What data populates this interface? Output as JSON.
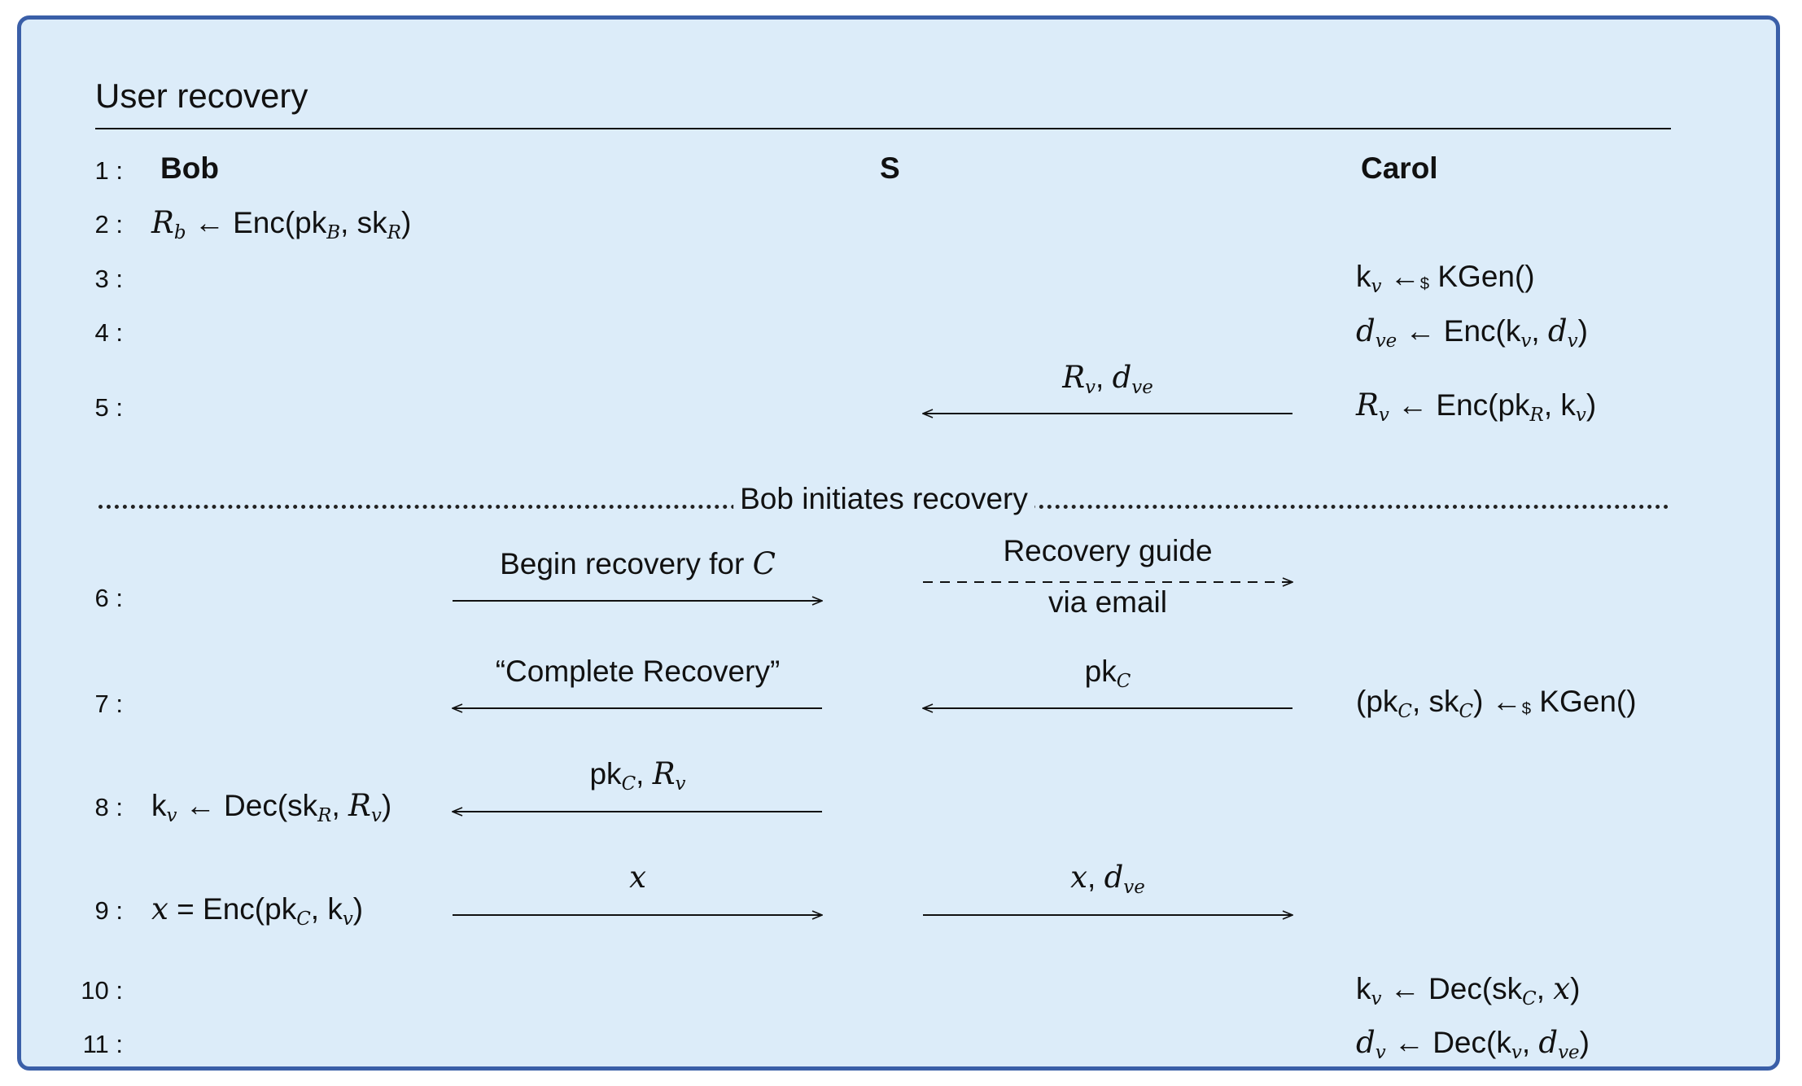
{
  "title": "User recovery",
  "colors": {
    "border": "#3a5fa8",
    "background": "#dcecf9"
  },
  "parties": {
    "left": "Bob",
    "middle": "S",
    "right": "Carol"
  },
  "line_numbers": [
    "1 :",
    "2 :",
    "3 :",
    "4 :",
    "5 :",
    "6 :",
    "7 :",
    "8 :",
    "9 :",
    "10 :",
    "11 :"
  ],
  "separator": "Bob initiates recovery",
  "steps": {
    "bob_2": "R_b ← Enc(pk_B, sk_R)",
    "carol_3": "k_v ←$ KGen()",
    "carol_4": "d_ve ← Enc(k_v, d_v)",
    "carol_5": "R_v ← Enc(pk_R, k_v)",
    "carol_7": "(pk_C, sk_C) ←$ KGen()",
    "bob_8": "k_v ← Dec(sk_R, R_v)",
    "bob_9": "x = Enc(pk_C, k_v)",
    "carol_10": "k_v ← Dec(sk_C, x)",
    "carol_11": "d_v ← Dec(k_v, d_ve)"
  },
  "messages": {
    "m5": {
      "label": "R_v, d_ve",
      "direction": "left",
      "style": "solid"
    },
    "m6a": {
      "label": "Begin recovery for C",
      "direction": "right",
      "style": "solid"
    },
    "m6b": {
      "label_top": "Recovery guide",
      "label_bottom": "via email",
      "direction": "right",
      "style": "dashed"
    },
    "m7a": {
      "label": "“Complete Recovery”",
      "direction": "left",
      "style": "solid"
    },
    "m7b": {
      "label": "pk_C",
      "direction": "left",
      "style": "solid"
    },
    "m8": {
      "label": "pk_C, R_v",
      "direction": "left",
      "style": "solid"
    },
    "m9a": {
      "label": "x",
      "direction": "right",
      "style": "solid"
    },
    "m9b": {
      "label": "x, d_ve",
      "direction": "right",
      "style": "solid"
    }
  }
}
